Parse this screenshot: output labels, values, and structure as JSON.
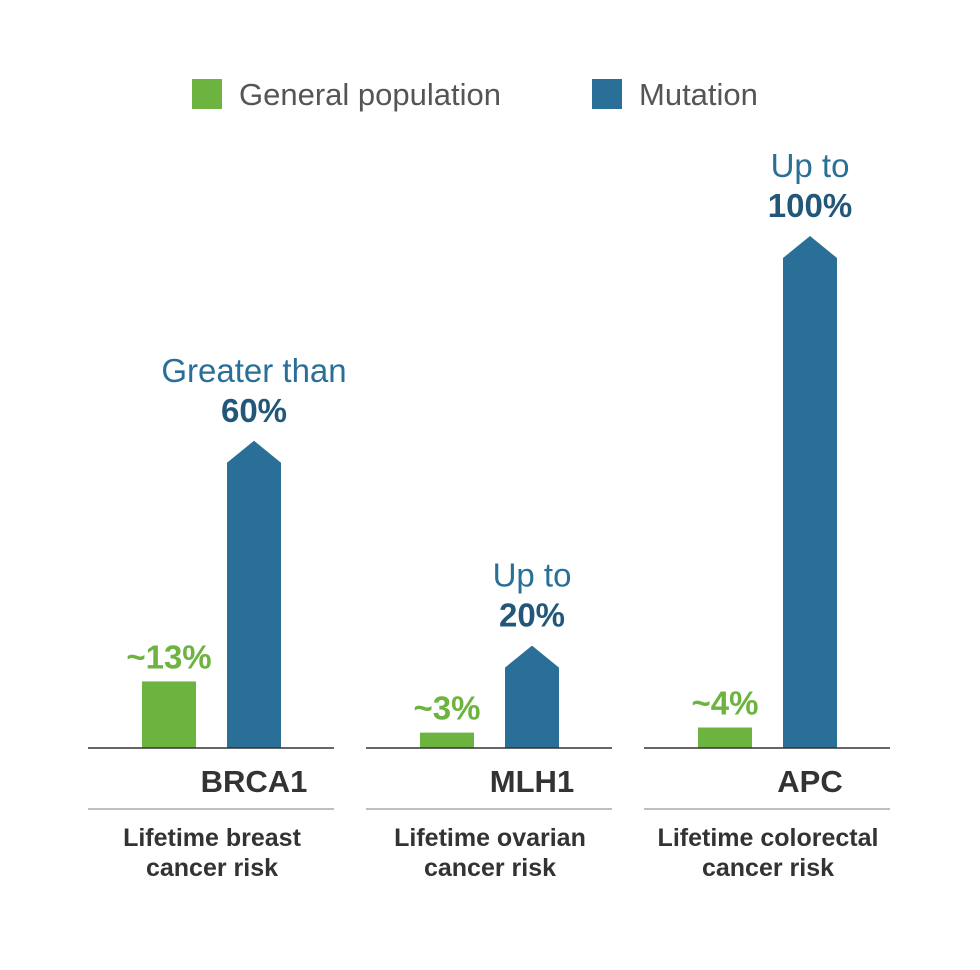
{
  "chart_data": {
    "type": "bar",
    "legend": [
      {
        "name": "General population",
        "color": "#6db33f"
      },
      {
        "name": "Mutation",
        "color": "#2a6f97"
      }
    ],
    "categories": [
      "BRCA1",
      "MLH1",
      "APC"
    ],
    "descriptions": [
      [
        "Lifetime breast",
        "cancer risk"
      ],
      [
        "Lifetime ovarian",
        "cancer risk"
      ],
      [
        "Lifetime colorectal",
        "cancer risk"
      ]
    ],
    "series": [
      {
        "name": "General population",
        "values": [
          13,
          3,
          4
        ],
        "labels": [
          "~13%",
          "~3%",
          "~4%"
        ]
      },
      {
        "name": "Mutation",
        "values": [
          60,
          20,
          100
        ],
        "label_prefix": [
          "Greater than",
          "Up to",
          "Up to"
        ],
        "labels": [
          "60%",
          "20%",
          "100%"
        ]
      }
    ],
    "ylim": [
      0,
      100
    ],
    "colors": {
      "green": "#6db33f",
      "blue": "#2a6f97",
      "text": "#333333",
      "axis": "#333333",
      "divider": "#aaaaaa"
    }
  }
}
